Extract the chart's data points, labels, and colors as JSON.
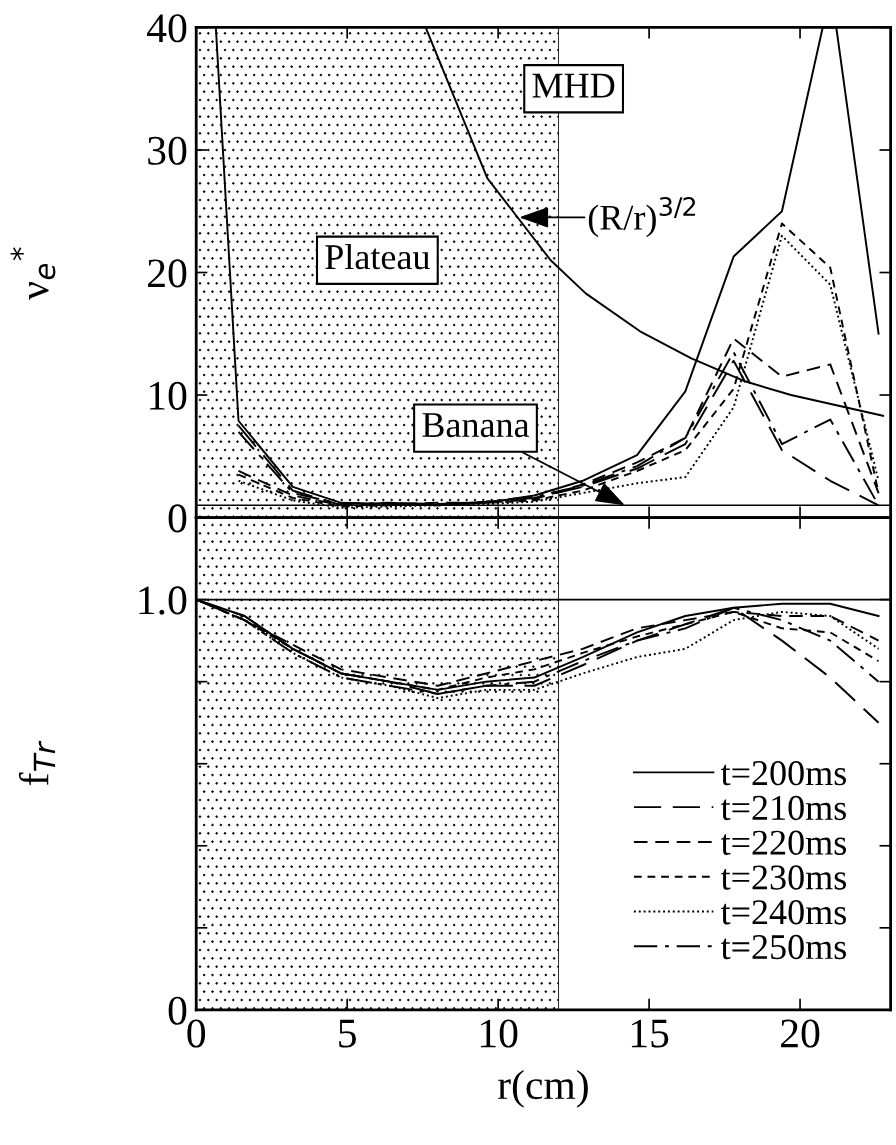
{
  "chart_data": [
    {
      "type": "line",
      "ylabel": "ν$_{e}$$^{*}$",
      "xlim": [
        0,
        23
      ],
      "xticks": [
        0,
        5,
        10,
        15,
        20
      ],
      "ylim": [
        0,
        40
      ],
      "yticks": [
        0,
        10,
        20,
        30,
        40
      ],
      "tick_labels": "y",
      "annotations": [
        "Plateau",
        "MHD",
        {
          "text": "Banana",
          "x": 14.2,
          "y": 1
        },
        {
          "text": "(R/r)$^{3/2}$",
          "x": 10.7,
          "y": 24.5
        }
      ],
      "bands": [
        {
          "axis": "x",
          "from": 0,
          "to": 12,
          "color": "#000000"
        }
      ],
      "ref_lines": [
        {
          "axis": "y",
          "value": 1,
          "color": "#000000"
        }
      ],
      "x": [
        1.4,
        3.2,
        4.8,
        6.4,
        8.0,
        9.6,
        11.2,
        12.8,
        14.6,
        16.2,
        17.8,
        19.4,
        21.0,
        22.6
      ],
      "series": [
        {
          "color": "#000000",
          "line_style": "solid",
          "x": [
            7.6,
            9.64,
            11.74,
            12.9,
            14.7,
            16.4,
            18.2,
            19.7,
            22.75
          ],
          "values": [
            40,
            27.7,
            21.0,
            18.3,
            15.2,
            13.0,
            11.1,
            10.0,
            8.3
          ]
        },
        {
          "color": "#000000",
          "line_style": "solid",
          "x": [
            0.65,
            1.4,
            3.2,
            4.8,
            6.4,
            8.0,
            9.6,
            11.2,
            12.8,
            14.6,
            16.2,
            17.8,
            19.4,
            20.75,
            21.2,
            22.6
          ],
          "values": [
            40,
            7.9,
            2.5,
            1.2,
            1.1,
            1.0,
            1.2,
            1.8,
            3.0,
            5.1,
            10.3,
            21.3,
            25.0,
            40,
            40,
            15
          ]
        },
        {
          "color": "#000000",
          "line_style": "long_dashed",
          "values": [
            7.5,
            2.2,
            1.0,
            1.2,
            1.1,
            1.3,
            1.6,
            2.5,
            4.0,
            6.0,
            12.8,
            5.5,
            3.0,
            1.0
          ]
        },
        {
          "color": "#000000",
          "line_style": "dashed",
          "values": [
            3.8,
            1.8,
            1.0,
            1.1,
            1.2,
            1.2,
            1.5,
            2.7,
            4.5,
            6.5,
            14.6,
            11.5,
            12.5,
            2.0
          ]
        },
        {
          "color": "#000000",
          "line_style": "short_dashed",
          "values": [
            3.5,
            1.6,
            0.9,
            1.0,
            1.1,
            1.2,
            1.4,
            2.2,
            3.8,
            5.5,
            10.5,
            24.0,
            20.4,
            2.0
          ]
        },
        {
          "color": "#000000",
          "line_style": "dotted",
          "values": [
            3.0,
            1.4,
            0.8,
            0.9,
            1.0,
            1.1,
            1.3,
            2.0,
            2.8,
            3.3,
            9.0,
            23.0,
            19.0,
            3.0
          ]
        },
        {
          "color": "#000000",
          "line_style": "dash_dot",
          "values": [
            7.0,
            2.0,
            1.1,
            1.2,
            1.0,
            1.3,
            1.7,
            2.6,
            4.2,
            6.5,
            13.5,
            6.0,
            8.0,
            1.0
          ]
        }
      ]
    },
    {
      "type": "line",
      "xlabel": "r(cm)",
      "ylabel": "f$_{Tr}$",
      "xlim": [
        0,
        23
      ],
      "xticks": [
        0,
        5,
        10,
        15,
        20
      ],
      "ylim": [
        0,
        1.2
      ],
      "yticks": [
        0,
        {
          "value": 0.2,
          "label": null
        },
        {
          "value": 0.4,
          "label": null
        },
        {
          "value": 0.6,
          "label": null
        },
        {
          "value": 0.8,
          "label": null
        },
        {
          "value": 1.0,
          "label": "1.0"
        }
      ],
      "legend": "bottom right",
      "bands": [
        {
          "axis": "x",
          "from": 0,
          "to": 12,
          "color": "#000000"
        }
      ],
      "ref_lines": [
        {
          "axis": "y",
          "value": 1.0,
          "color": "#000000"
        }
      ],
      "x": [
        0,
        1.6,
        3.2,
        4.8,
        6.4,
        8.0,
        9.6,
        11.2,
        12.8,
        14.6,
        16.2,
        17.8,
        19.4,
        21.0,
        22.6
      ],
      "series": [
        {
          "name": "t=200ms",
          "color": "#000000",
          "line_style": "solid",
          "values": [
            1.0,
            0.96,
            0.88,
            0.82,
            0.8,
            0.78,
            0.8,
            0.81,
            0.86,
            0.92,
            0.96,
            0.98,
            0.99,
            0.99,
            0.96
          ]
        },
        {
          "name": "t=210ms",
          "color": "#000000",
          "line_style": "long_dashed",
          "values": [
            1.0,
            0.96,
            0.88,
            0.82,
            0.8,
            0.77,
            0.79,
            0.79,
            0.84,
            0.9,
            0.94,
            0.98,
            0.9,
            0.81,
            0.7
          ]
        },
        {
          "name": "t=220ms",
          "color": "#000000",
          "line_style": "dashed",
          "values": [
            1.0,
            0.95,
            0.89,
            0.83,
            0.81,
            0.79,
            0.82,
            0.85,
            0.88,
            0.93,
            0.95,
            0.97,
            0.96,
            0.96,
            0.9
          ]
        },
        {
          "name": "t=230ms",
          "color": "#000000",
          "line_style": "short_dashed",
          "values": [
            1.0,
            0.95,
            0.88,
            0.82,
            0.8,
            0.78,
            0.81,
            0.83,
            0.87,
            0.91,
            0.94,
            0.97,
            0.93,
            0.92,
            0.85
          ]
        },
        {
          "name": "t=240ms",
          "color": "#000000",
          "line_style": "dotted",
          "values": [
            1.0,
            0.95,
            0.87,
            0.81,
            0.79,
            0.76,
            0.78,
            0.78,
            0.82,
            0.86,
            0.88,
            0.95,
            0.97,
            0.96,
            0.88
          ]
        },
        {
          "name": "t=250ms",
          "color": "#000000",
          "line_style": "dash_dot",
          "values": [
            1.0,
            0.95,
            0.87,
            0.81,
            0.79,
            0.77,
            0.79,
            0.8,
            0.85,
            0.9,
            0.93,
            0.98,
            0.95,
            0.9,
            0.8
          ]
        }
      ]
    }
  ]
}
